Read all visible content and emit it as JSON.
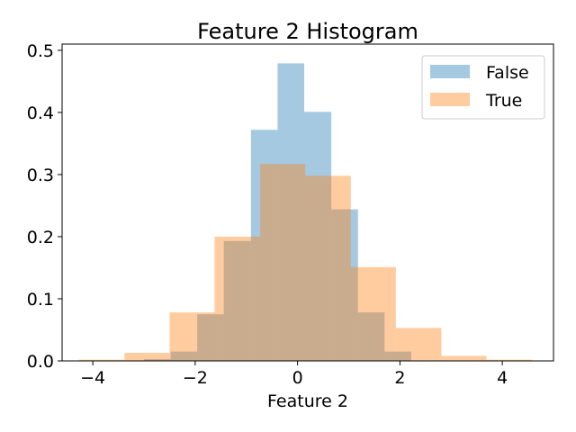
{
  "chart_data": {
    "type": "histogram",
    "title": "Feature 2 Histogram",
    "xlabel": "Feature 2",
    "ylabel": "",
    "xlim": [
      -4.6,
      5.0
    ],
    "ylim": [
      0,
      0.51
    ],
    "xticks": [
      -4,
      -2,
      0,
      2,
      4
    ],
    "xtick_labels": [
      "−4",
      "−2",
      "0",
      "2",
      "4"
    ],
    "yticks": [
      0.0,
      0.1,
      0.2,
      0.3,
      0.4,
      0.5
    ],
    "ytick_labels": [
      "0.0",
      "0.1",
      "0.2",
      "0.3",
      "0.4",
      "0.5"
    ],
    "grid": false,
    "legend_position": "top-right",
    "series": [
      {
        "name": "False",
        "color": "#1f77b4",
        "opacity": 0.4,
        "bins": [
          {
            "x0": -3.0,
            "x1": -2.48,
            "value": 0.003
          },
          {
            "x0": -2.48,
            "x1": -1.96,
            "value": 0.015
          },
          {
            "x0": -1.96,
            "x1": -1.44,
            "value": 0.075
          },
          {
            "x0": -1.44,
            "x1": -0.91,
            "value": 0.193
          },
          {
            "x0": -0.91,
            "x1": -0.39,
            "value": 0.372
          },
          {
            "x0": -0.39,
            "x1": 0.13,
            "value": 0.479
          },
          {
            "x0": 0.13,
            "x1": 0.66,
            "value": 0.401
          },
          {
            "x0": 0.66,
            "x1": 1.18,
            "value": 0.244
          },
          {
            "x0": 1.18,
            "x1": 1.7,
            "value": 0.078
          },
          {
            "x0": 1.7,
            "x1": 2.22,
            "value": 0.015
          }
        ]
      },
      {
        "name": "True",
        "color": "#ff7f0e",
        "opacity": 0.4,
        "bins": [
          {
            "x0": -4.27,
            "x1": -3.38,
            "value": 0.002
          },
          {
            "x0": -3.38,
            "x1": -2.5,
            "value": 0.013
          },
          {
            "x0": -2.5,
            "x1": -1.62,
            "value": 0.078
          },
          {
            "x0": -1.62,
            "x1": -0.73,
            "value": 0.2
          },
          {
            "x0": -0.73,
            "x1": 0.15,
            "value": 0.317
          },
          {
            "x0": 0.15,
            "x1": 1.04,
            "value": 0.298
          },
          {
            "x0": 1.04,
            "x1": 1.92,
            "value": 0.151
          },
          {
            "x0": 1.92,
            "x1": 2.81,
            "value": 0.053
          },
          {
            "x0": 2.81,
            "x1": 3.69,
            "value": 0.008
          },
          {
            "x0": 3.69,
            "x1": 4.58,
            "value": 0.002
          }
        ]
      }
    ]
  }
}
